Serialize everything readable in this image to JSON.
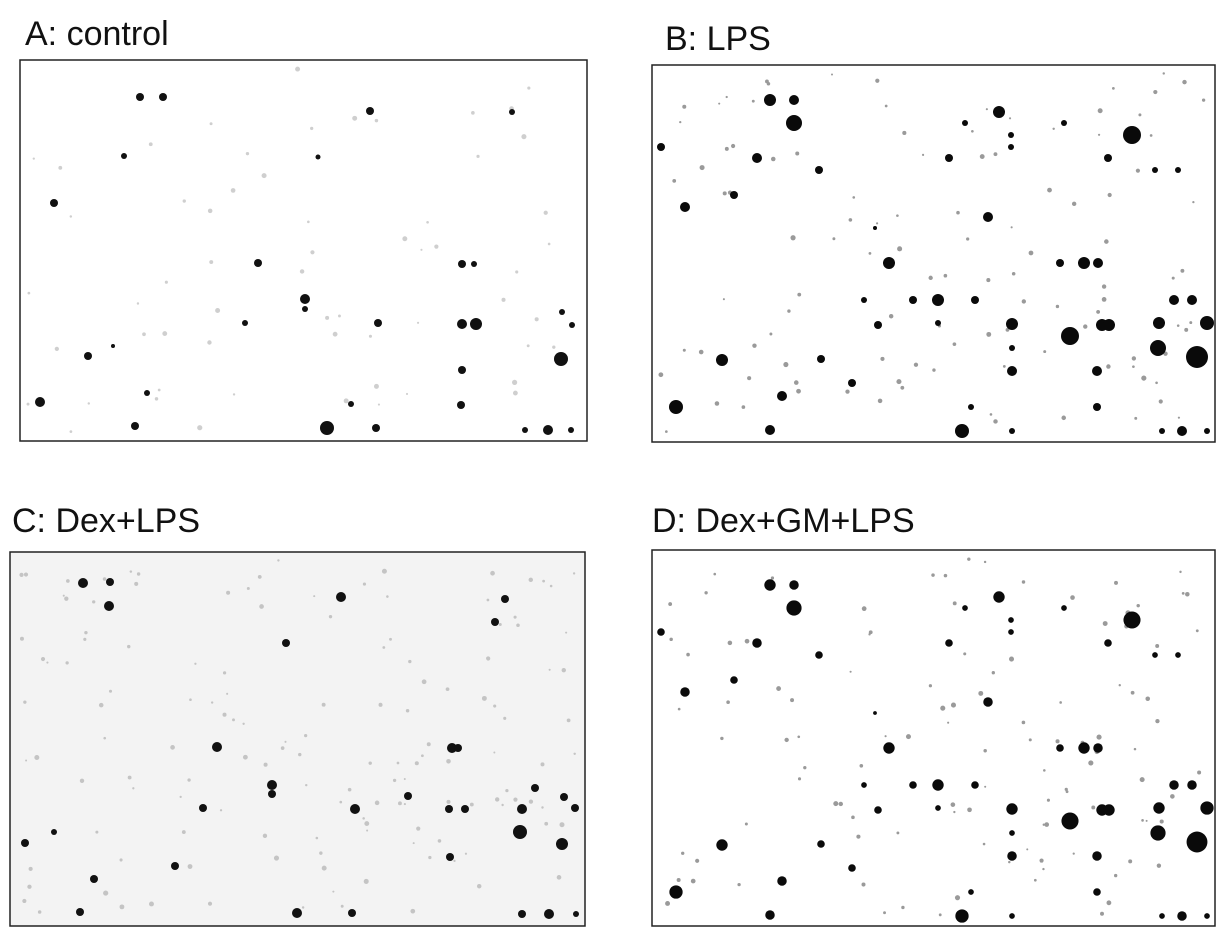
{
  "panels": [
    {
      "label": "A: control"
    },
    {
      "label": "B: LPS"
    },
    {
      "label": "C: Dex+LPS"
    },
    {
      "label": "D: Dex+GM+LPS"
    }
  ]
}
